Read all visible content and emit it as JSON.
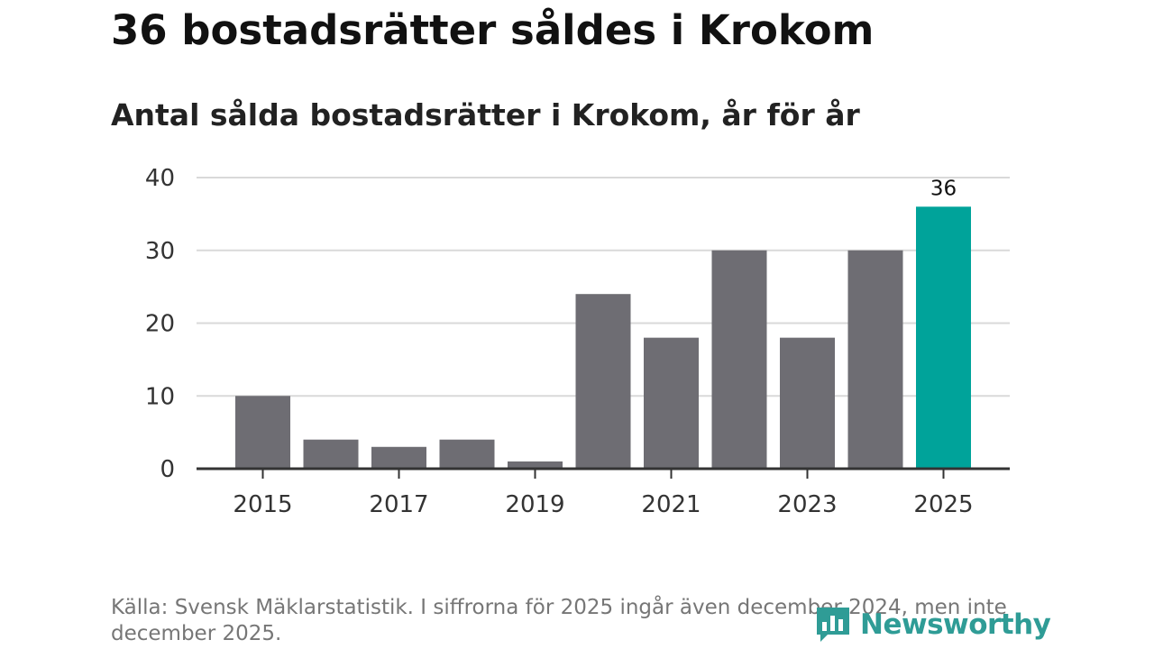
{
  "title": "36 bostadsrätter såldes i Krokom",
  "subtitle": "Antal sålda bostadsrätter i Krokom, år för år",
  "source": "Källa: Svensk Mäklarstatistik. I siffrorna för 2025 ingår även december 2024, men inte december 2025.",
  "logo": {
    "text": "Newsworthy",
    "icon": "bar-chart-icon"
  },
  "colors": {
    "bar": "#6e6d73",
    "highlight": "#00a39a",
    "grid": "#d9d9d9",
    "axis": "#333333",
    "label": "#333333",
    "logo": "#2f9c96"
  },
  "chart_data": {
    "type": "bar",
    "title": "36 bostadsrätter såldes i Krokom",
    "subtitle": "Antal sålda bostadsrätter i Krokom, år för år",
    "xlabel": "",
    "ylabel": "",
    "categories": [
      "2015",
      "2016",
      "2017",
      "2018",
      "2019",
      "2020",
      "2021",
      "2022",
      "2023",
      "2024",
      "2025"
    ],
    "values": [
      10,
      4,
      3,
      4,
      1,
      24,
      18,
      30,
      18,
      30,
      36
    ],
    "x_tick_labels": [
      "2015",
      "2017",
      "2019",
      "2021",
      "2023",
      "2025"
    ],
    "y_ticks": [
      0,
      10,
      20,
      30,
      40
    ],
    "ylim": [
      0,
      40
    ],
    "grid": true,
    "highlight": {
      "category": "2025",
      "label": "36"
    }
  }
}
